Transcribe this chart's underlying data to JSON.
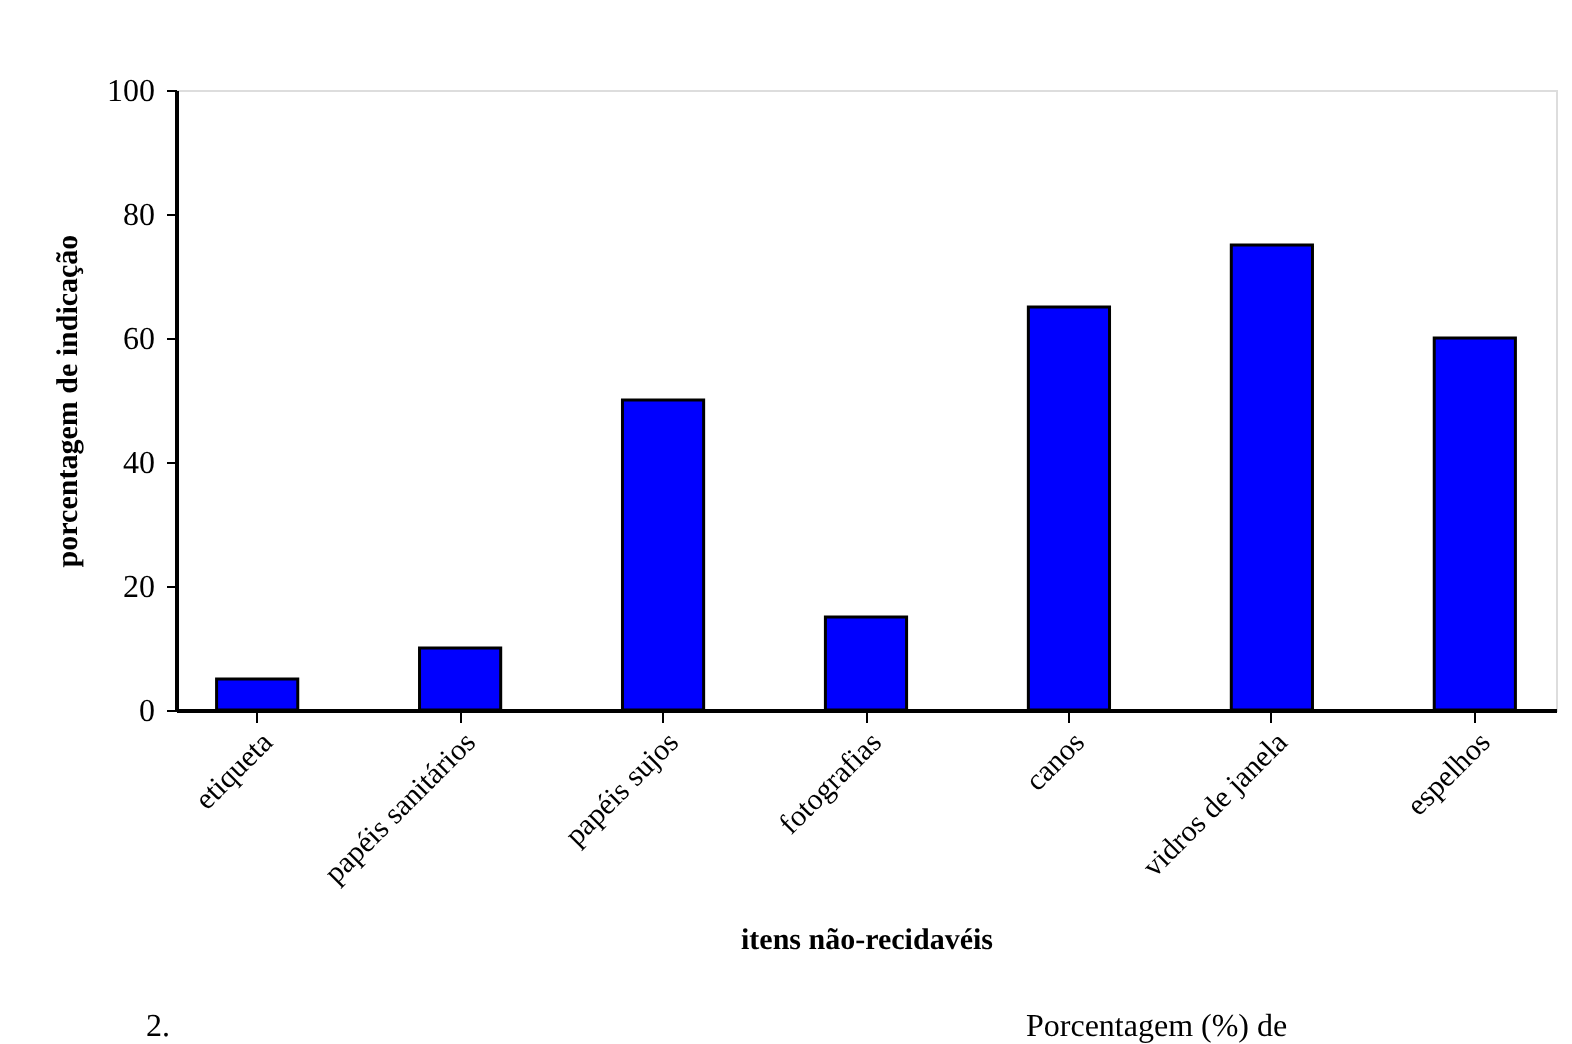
{
  "chart_data": {
    "type": "bar",
    "xlabel": "itens não-recidavéis",
    "ylabel": "porcentagem de indicação",
    "categories": [
      "etiqueta",
      "papéis sanitários",
      "papéis sujos",
      "fotografias",
      "canos",
      "vidros de janela",
      "espelhos"
    ],
    "values": [
      5,
      10,
      50,
      15,
      65,
      75,
      60
    ],
    "color": "#0000ff",
    "ylim": [
      0,
      100
    ],
    "yticks": [
      0,
      20,
      40,
      60,
      80,
      100
    ],
    "grid": false,
    "annotations": [
      "2.",
      "Porcentagem (%) de"
    ]
  }
}
